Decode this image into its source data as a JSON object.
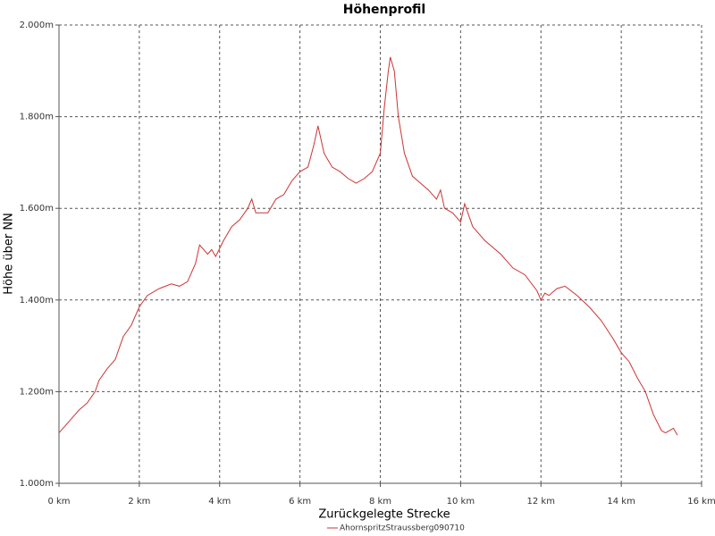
{
  "chart_data": {
    "type": "line",
    "title": "Höhenprofil",
    "x_label": "Zurückgelegte Strecke",
    "y_label": "Höhe über NN",
    "x": [
      0,
      0.1,
      0.3,
      0.5,
      0.7,
      0.9,
      1.0,
      1.2,
      1.4,
      1.6,
      1.8,
      2.0,
      2.2,
      2.5,
      2.8,
      3.0,
      3.2,
      3.4,
      3.5,
      3.7,
      3.8,
      3.9,
      4.1,
      4.3,
      4.5,
      4.7,
      4.8,
      4.9,
      5.0,
      5.2,
      5.4,
      5.6,
      5.8,
      6.0,
      6.2,
      6.35,
      6.45,
      6.6,
      6.8,
      7.0,
      7.2,
      7.4,
      7.6,
      7.8,
      8.0,
      8.1,
      8.2,
      8.25,
      8.35,
      8.45,
      8.6,
      8.8,
      9.0,
      9.2,
      9.4,
      9.5,
      9.6,
      9.8,
      10.0,
      10.1,
      10.3,
      10.6,
      11.0,
      11.3,
      11.6,
      11.9,
      12.0,
      12.1,
      12.2,
      12.4,
      12.6,
      12.9,
      13.2,
      13.5,
      13.8,
      14.0,
      14.2,
      14.4,
      14.6,
      14.8,
      15.0,
      15.1,
      15.3,
      15.4
    ],
    "series": [
      {
        "name": "AhornspritzStraussberg090710",
        "color": "#cc3333",
        "values": [
          1110,
          1120,
          1140,
          1160,
          1175,
          1200,
          1225,
          1250,
          1270,
          1320,
          1345,
          1385,
          1410,
          1425,
          1435,
          1430,
          1440,
          1480,
          1520,
          1500,
          1510,
          1495,
          1530,
          1560,
          1575,
          1600,
          1620,
          1590,
          1590,
          1590,
          1620,
          1630,
          1660,
          1680,
          1690,
          1740,
          1780,
          1720,
          1690,
          1680,
          1665,
          1655,
          1665,
          1680,
          1720,
          1820,
          1900,
          1930,
          1900,
          1800,
          1720,
          1670,
          1655,
          1640,
          1620,
          1640,
          1600,
          1590,
          1570,
          1610,
          1560,
          1530,
          1500,
          1470,
          1455,
          1420,
          1400,
          1415,
          1410,
          1425,
          1430,
          1410,
          1385,
          1355,
          1315,
          1285,
          1265,
          1230,
          1200,
          1150,
          1115,
          1110,
          1120,
          1105
        ]
      }
    ],
    "xlim": [
      0,
      16
    ],
    "ylim": [
      1000,
      2000
    ],
    "xticks": [
      {
        "value": 0,
        "label": "0 km"
      },
      {
        "value": 2,
        "label": "2 km"
      },
      {
        "value": 4,
        "label": "4 km"
      },
      {
        "value": 6,
        "label": "6 km"
      },
      {
        "value": 8,
        "label": "8 km"
      },
      {
        "value": 10,
        "label": "10 km"
      },
      {
        "value": 12,
        "label": "12 km"
      },
      {
        "value": 14,
        "label": "14 km"
      },
      {
        "value": 16,
        "label": "16 km"
      }
    ],
    "yticks": [
      {
        "value": 1000,
        "label": "1.000m"
      },
      {
        "value": 1200,
        "label": "1.200m"
      },
      {
        "value": 1400,
        "label": "1.400m"
      },
      {
        "value": 1600,
        "label": "1.600m"
      },
      {
        "value": 1800,
        "label": "1.800m"
      },
      {
        "value": 2000,
        "label": "2.000m"
      }
    ],
    "grid": true
  }
}
